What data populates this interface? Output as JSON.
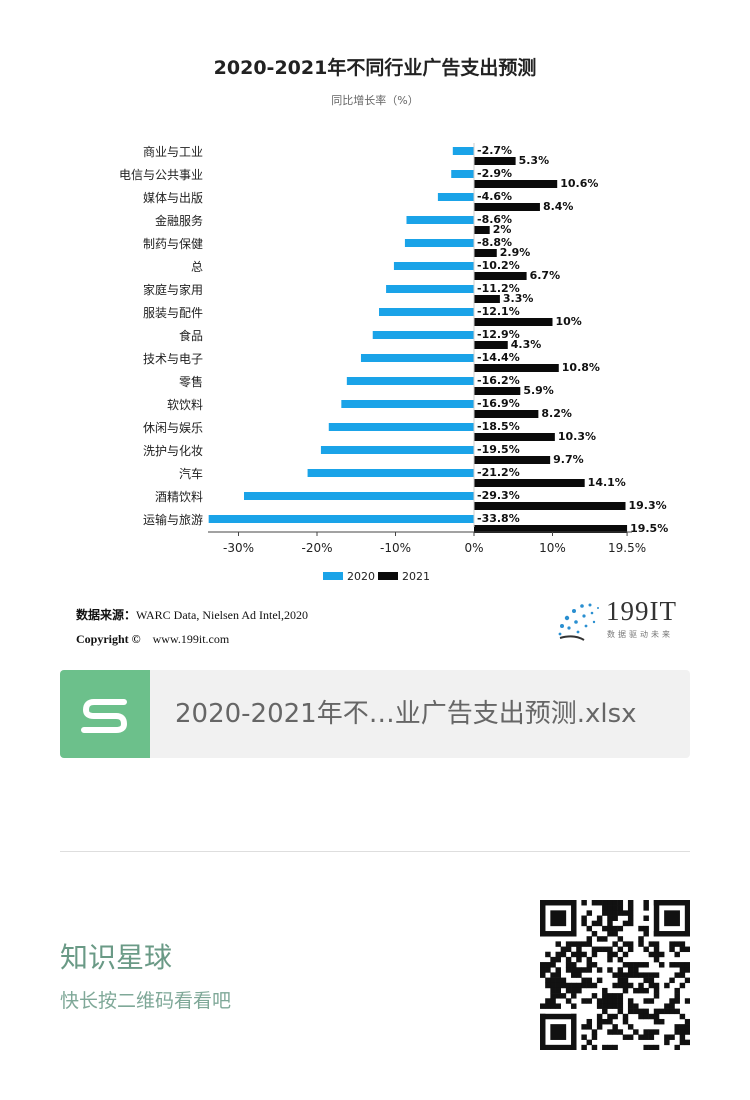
{
  "chart_data": {
    "type": "bar",
    "orientation": "horizontal",
    "title": "2020-2021年不同行业广告支出预测",
    "subtitle": "同比增长率（%）",
    "categories": [
      "商业与工业",
      "电信与公共事业",
      "媒体与出版",
      "金融服务",
      "制药与保健",
      "总",
      "家庭与家用",
      "服装与配件",
      "食品",
      "技术与电子",
      "零售",
      "软饮料",
      "休闲与娱乐",
      "洗护与化妆",
      "汽车",
      "酒精饮料",
      "运输与旅游"
    ],
    "series": [
      {
        "name": "2020",
        "color": "#1aa3e8",
        "values": [
          -2.7,
          -2.9,
          -4.6,
          -8.6,
          -8.8,
          -10.2,
          -11.2,
          -12.1,
          -12.9,
          -14.4,
          -16.2,
          -16.9,
          -18.5,
          -19.5,
          -21.2,
          -29.3,
          -33.8
        ],
        "labels": [
          "-2.7%",
          "-2.9%",
          "-4.6%",
          "-8.6%",
          "-8.8%",
          "-10.2%",
          "-11.2%",
          "-12.1%",
          "-12.9%",
          "-14.4%",
          "-16.2%",
          "-16.9%",
          "-18.5%",
          "-19.5%",
          "-21.2%",
          "-29.3%",
          "-33.8%"
        ]
      },
      {
        "name": "2021",
        "color": "#0a0a0a",
        "values": [
          5.3,
          10.6,
          8.4,
          2,
          2.9,
          6.7,
          3.3,
          10,
          4.3,
          10.8,
          5.9,
          8.2,
          10.3,
          9.7,
          14.1,
          19.3,
          19.5
        ],
        "labels": [
          "5.3%",
          "10.6%",
          "8.4%",
          "2%",
          "2.9%",
          "6.7%",
          "3.3%",
          "10%",
          "4.3%",
          "10.8%",
          "5.9%",
          "8.2%",
          "10.3%",
          "9.7%",
          "14.1%",
          "19.3%",
          "19.5%"
        ]
      }
    ],
    "xticks": [
      -30,
      -20,
      -10,
      0,
      10,
      19.5
    ],
    "xtick_labels": [
      "-30%",
      "-20%",
      "-10%",
      "0%",
      "10%",
      "19.5%"
    ],
    "xlim": [
      -34,
      19.5
    ],
    "legend_position": "bottom-center",
    "grid": false
  },
  "source": {
    "label": "数据来源：",
    "text": "WARC Data, Nielsen Ad Intel,2020",
    "copyright_label": "Copyright ©",
    "website": "www.199it.com"
  },
  "logo": {
    "name": "199IT",
    "tagline": "数据驱动未来"
  },
  "file": {
    "icon": "spreadsheet-s-icon",
    "name": "2020-2021年不…业广告支出预测.xlsx"
  },
  "planet": {
    "title": "知识星球",
    "subtitle": "快长按二维码看看吧",
    "qr": "qr-code-icon"
  }
}
